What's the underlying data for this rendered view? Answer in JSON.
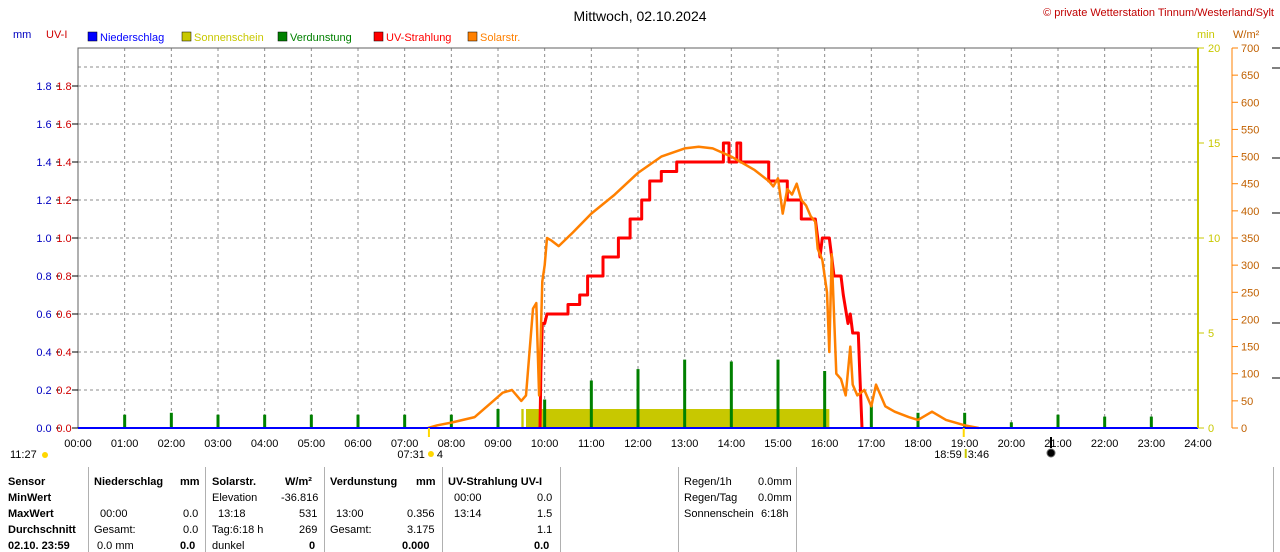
{
  "header": {
    "title": "Mittwoch, 02.10.2024",
    "credit": "© private Wetterstation Tinnum/Westerland/Sylt"
  },
  "units": {
    "mm": "mm",
    "uvi": "UV-I",
    "min": "min",
    "wm2": "W/m²"
  },
  "legend": [
    {
      "label": "Niederschlag",
      "color": "#0000ff"
    },
    {
      "label": "Sonnenschein",
      "color": "#c8c800"
    },
    {
      "label": "Verdunstung",
      "color": "#008000"
    },
    {
      "label": "UV-Strahlung",
      "color": "#ff0000"
    },
    {
      "label": "Solarstr.",
      "color": "#ff8000"
    }
  ],
  "chart_data": {
    "type": "line",
    "title": "Mittwoch, 02.10.2024",
    "xlim": [
      0,
      24
    ],
    "x_ticks": [
      "00:00",
      "01:00",
      "02:00",
      "03:00",
      "04:00",
      "05:00",
      "06:00",
      "07:00",
      "08:00",
      "09:00",
      "10:00",
      "11:00",
      "12:00",
      "13:00",
      "14:00",
      "15:00",
      "16:00",
      "17:00",
      "18:00",
      "19:00",
      "20:00",
      "21:00",
      "22:00",
      "23:00",
      "24:00"
    ],
    "left_axis": {
      "label": "UV-I",
      "ylim": [
        0,
        2.0
      ],
      "ticks": [
        "0.0",
        "0.2",
        "0.4",
        "0.6",
        "0.8",
        "1.0",
        "1.2",
        "1.4",
        "1.6",
        "1.8"
      ]
    },
    "sun_axis": {
      "label": "min",
      "ylim": [
        0,
        20
      ],
      "ticks": [
        "0",
        "5",
        "10",
        "15",
        "20"
      ]
    },
    "solar_axis": {
      "label": "W/m²",
      "ylim": [
        0,
        700
      ],
      "ticks": [
        "0",
        "50",
        "100",
        "150",
        "200",
        "250",
        "300",
        "350",
        "400",
        "450",
        "500",
        "550",
        "600",
        "650",
        "700"
      ]
    },
    "series": [
      {
        "name": "UV-Strahlung",
        "color": "#ff0000",
        "axis": "uvi",
        "points": [
          [
            9.9,
            0
          ],
          [
            9.92,
            0.3
          ],
          [
            9.95,
            0.55
          ],
          [
            10.0,
            0.55
          ],
          [
            10.05,
            0.6
          ],
          [
            10.5,
            0.6
          ],
          [
            10.5,
            0.65
          ],
          [
            10.75,
            0.65
          ],
          [
            10.75,
            0.7
          ],
          [
            10.92,
            0.7
          ],
          [
            10.92,
            0.8
          ],
          [
            11.25,
            0.8
          ],
          [
            11.25,
            0.9
          ],
          [
            11.58,
            0.9
          ],
          [
            11.58,
            1.0
          ],
          [
            11.83,
            1.0
          ],
          [
            11.83,
            1.1
          ],
          [
            12.08,
            1.1
          ],
          [
            12.08,
            1.2
          ],
          [
            12.25,
            1.2
          ],
          [
            12.25,
            1.3
          ],
          [
            12.5,
            1.3
          ],
          [
            12.5,
            1.35
          ],
          [
            12.83,
            1.35
          ],
          [
            12.83,
            1.4
          ],
          [
            13.83,
            1.4
          ],
          [
            13.83,
            1.5
          ],
          [
            13.95,
            1.5
          ],
          [
            13.95,
            1.4
          ],
          [
            14.12,
            1.4
          ],
          [
            14.12,
            1.5
          ],
          [
            14.2,
            1.5
          ],
          [
            14.2,
            1.4
          ],
          [
            14.8,
            1.4
          ],
          [
            14.8,
            1.3
          ],
          [
            15.2,
            1.3
          ],
          [
            15.2,
            1.2
          ],
          [
            15.5,
            1.2
          ],
          [
            15.5,
            1.1
          ],
          [
            15.8,
            1.1
          ],
          [
            15.85,
            1.0
          ],
          [
            15.9,
            0.9
          ],
          [
            15.95,
            1.0
          ],
          [
            16.1,
            1.0
          ],
          [
            16.15,
            0.9
          ],
          [
            16.2,
            0.8
          ],
          [
            16.35,
            0.8
          ],
          [
            16.4,
            0.7
          ],
          [
            16.5,
            0.55
          ],
          [
            16.55,
            0.6
          ],
          [
            16.6,
            0.5
          ],
          [
            16.72,
            0.5
          ],
          [
            16.75,
            0.3
          ],
          [
            16.8,
            0
          ]
        ]
      },
      {
        "name": "Solarstr.",
        "color": "#ff8000",
        "axis": "solar",
        "points": [
          [
            7.5,
            0
          ],
          [
            7.7,
            5
          ],
          [
            8.0,
            10
          ],
          [
            8.5,
            20
          ],
          [
            8.9,
            50
          ],
          [
            9.1,
            65
          ],
          [
            9.3,
            70
          ],
          [
            9.5,
            50
          ],
          [
            9.6,
            60
          ],
          [
            9.75,
            220
          ],
          [
            9.82,
            230
          ],
          [
            9.88,
            60
          ],
          [
            9.95,
            270
          ],
          [
            10.0,
            300
          ],
          [
            10.05,
            350
          ],
          [
            10.15,
            345
          ],
          [
            10.3,
            335
          ],
          [
            10.6,
            360
          ],
          [
            11.0,
            395
          ],
          [
            11.5,
            430
          ],
          [
            12.0,
            470
          ],
          [
            12.5,
            500
          ],
          [
            13.0,
            515
          ],
          [
            13.3,
            518
          ],
          [
            13.6,
            515
          ],
          [
            14.0,
            500
          ],
          [
            14.5,
            475
          ],
          [
            14.8,
            455
          ],
          [
            14.9,
            445
          ],
          [
            15.0,
            460
          ],
          [
            15.1,
            395
          ],
          [
            15.2,
            440
          ],
          [
            15.3,
            430
          ],
          [
            15.4,
            450
          ],
          [
            15.5,
            420
          ],
          [
            15.6,
            410
          ],
          [
            15.7,
            390
          ],
          [
            15.8,
            380
          ],
          [
            15.85,
            330
          ],
          [
            15.95,
            310
          ],
          [
            16.05,
            250
          ],
          [
            16.1,
            140
          ],
          [
            16.15,
            320
          ],
          [
            16.25,
            100
          ],
          [
            16.35,
            90
          ],
          [
            16.45,
            60
          ],
          [
            16.55,
            150
          ],
          [
            16.6,
            80
          ],
          [
            16.7,
            60
          ],
          [
            16.85,
            70
          ],
          [
            17.0,
            40
          ],
          [
            17.1,
            80
          ],
          [
            17.3,
            40
          ],
          [
            17.5,
            30
          ],
          [
            17.8,
            20
          ],
          [
            18.0,
            15
          ],
          [
            18.3,
            30
          ],
          [
            18.6,
            15
          ],
          [
            19.0,
            5
          ],
          [
            19.3,
            0
          ]
        ]
      }
    ],
    "sunshine": {
      "name": "Sonnenschein",
      "color": "#c8c800",
      "axis": "sun",
      "bars": [
        [
          9.5,
          9.55,
          1
        ],
        [
          9.6,
          10.0,
          1
        ],
        [
          10.0,
          16.1,
          1
        ]
      ]
    },
    "evaporation": {
      "name": "Verdunstung",
      "color": "#008000",
      "axis": "uvi",
      "bars": [
        [
          1,
          0.07
        ],
        [
          2,
          0.08
        ],
        [
          3,
          0.07
        ],
        [
          4,
          0.07
        ],
        [
          5,
          0.07
        ],
        [
          6,
          0.07
        ],
        [
          7,
          0.07
        ],
        [
          8,
          0.07
        ],
        [
          9,
          0.1
        ],
        [
          10,
          0.15
        ],
        [
          11,
          0.25
        ],
        [
          12,
          0.31
        ],
        [
          13,
          0.36
        ],
        [
          14,
          0.35
        ],
        [
          15,
          0.36
        ],
        [
          16,
          0.3
        ],
        [
          17,
          0.12
        ],
        [
          18,
          0.08
        ],
        [
          19,
          0.08
        ],
        [
          20,
          0.03
        ],
        [
          21,
          0.07
        ],
        [
          22,
          0.06
        ],
        [
          23,
          0.06
        ]
      ]
    },
    "events": [
      {
        "label": "11:27",
        "type": "sun-dot",
        "x": 0.92,
        "where": "left"
      },
      {
        "label": "07:31",
        "type": "sunrise",
        "x": 7.52
      },
      {
        "label": "4",
        "type": "moon",
        "x": 7.52
      },
      {
        "label": "18:59",
        "type": "sunset",
        "x": 18.98
      },
      {
        "label": "3:46",
        "type": "moonphase",
        "x": 19.1
      },
      {
        "label": "",
        "type": "newmoon",
        "x": 20.85
      }
    ]
  },
  "stats": {
    "col1": {
      "header": "Sensor",
      "min": "MinWert",
      "max": "MaxWert",
      "avg": "Durchschnitt",
      "date": "02.10. 23:59"
    },
    "niederschlag": {
      "header": "Niederschlag",
      "unit": "mm",
      "max_time": "00:00",
      "max_val": "0.0",
      "total_label": "Gesamt:",
      "total_val": "0.0",
      "day_val": "0.0 mm",
      "day_bold": "0.0"
    },
    "solar": {
      "header": "Solarstr.",
      "unit": "W/m²",
      "elev_label": "Elevation",
      "elev_val": "-36.816",
      "max_time": "13:18",
      "max_val": "531",
      "tag_label": "Tag:6:18 h",
      "tag_val": "269",
      "dark_label": "dunkel",
      "dark_val": "0"
    },
    "verdunstung": {
      "header": "Verdunstung",
      "unit": "mm",
      "max_time": "13:00",
      "max_val": "0.356",
      "total_label": "Gesamt:",
      "total_val": "3.175",
      "day_val": "0.000"
    },
    "uv": {
      "header": "UV-Strahlung UV-I",
      "min_time": "00:00",
      "min_val": "0.0",
      "max_time": "13:14",
      "max_val": "1.5",
      "avg_val": "1.1",
      "day_val": "0.0"
    },
    "right": {
      "rain1h_label": "Regen/1h",
      "rain1h_val": "0.0mm",
      "rainday_label": "Regen/Tag",
      "rainday_val": "0.0mm",
      "sun_label": "Sonnenschein",
      "sun_val": "6:18h"
    }
  }
}
